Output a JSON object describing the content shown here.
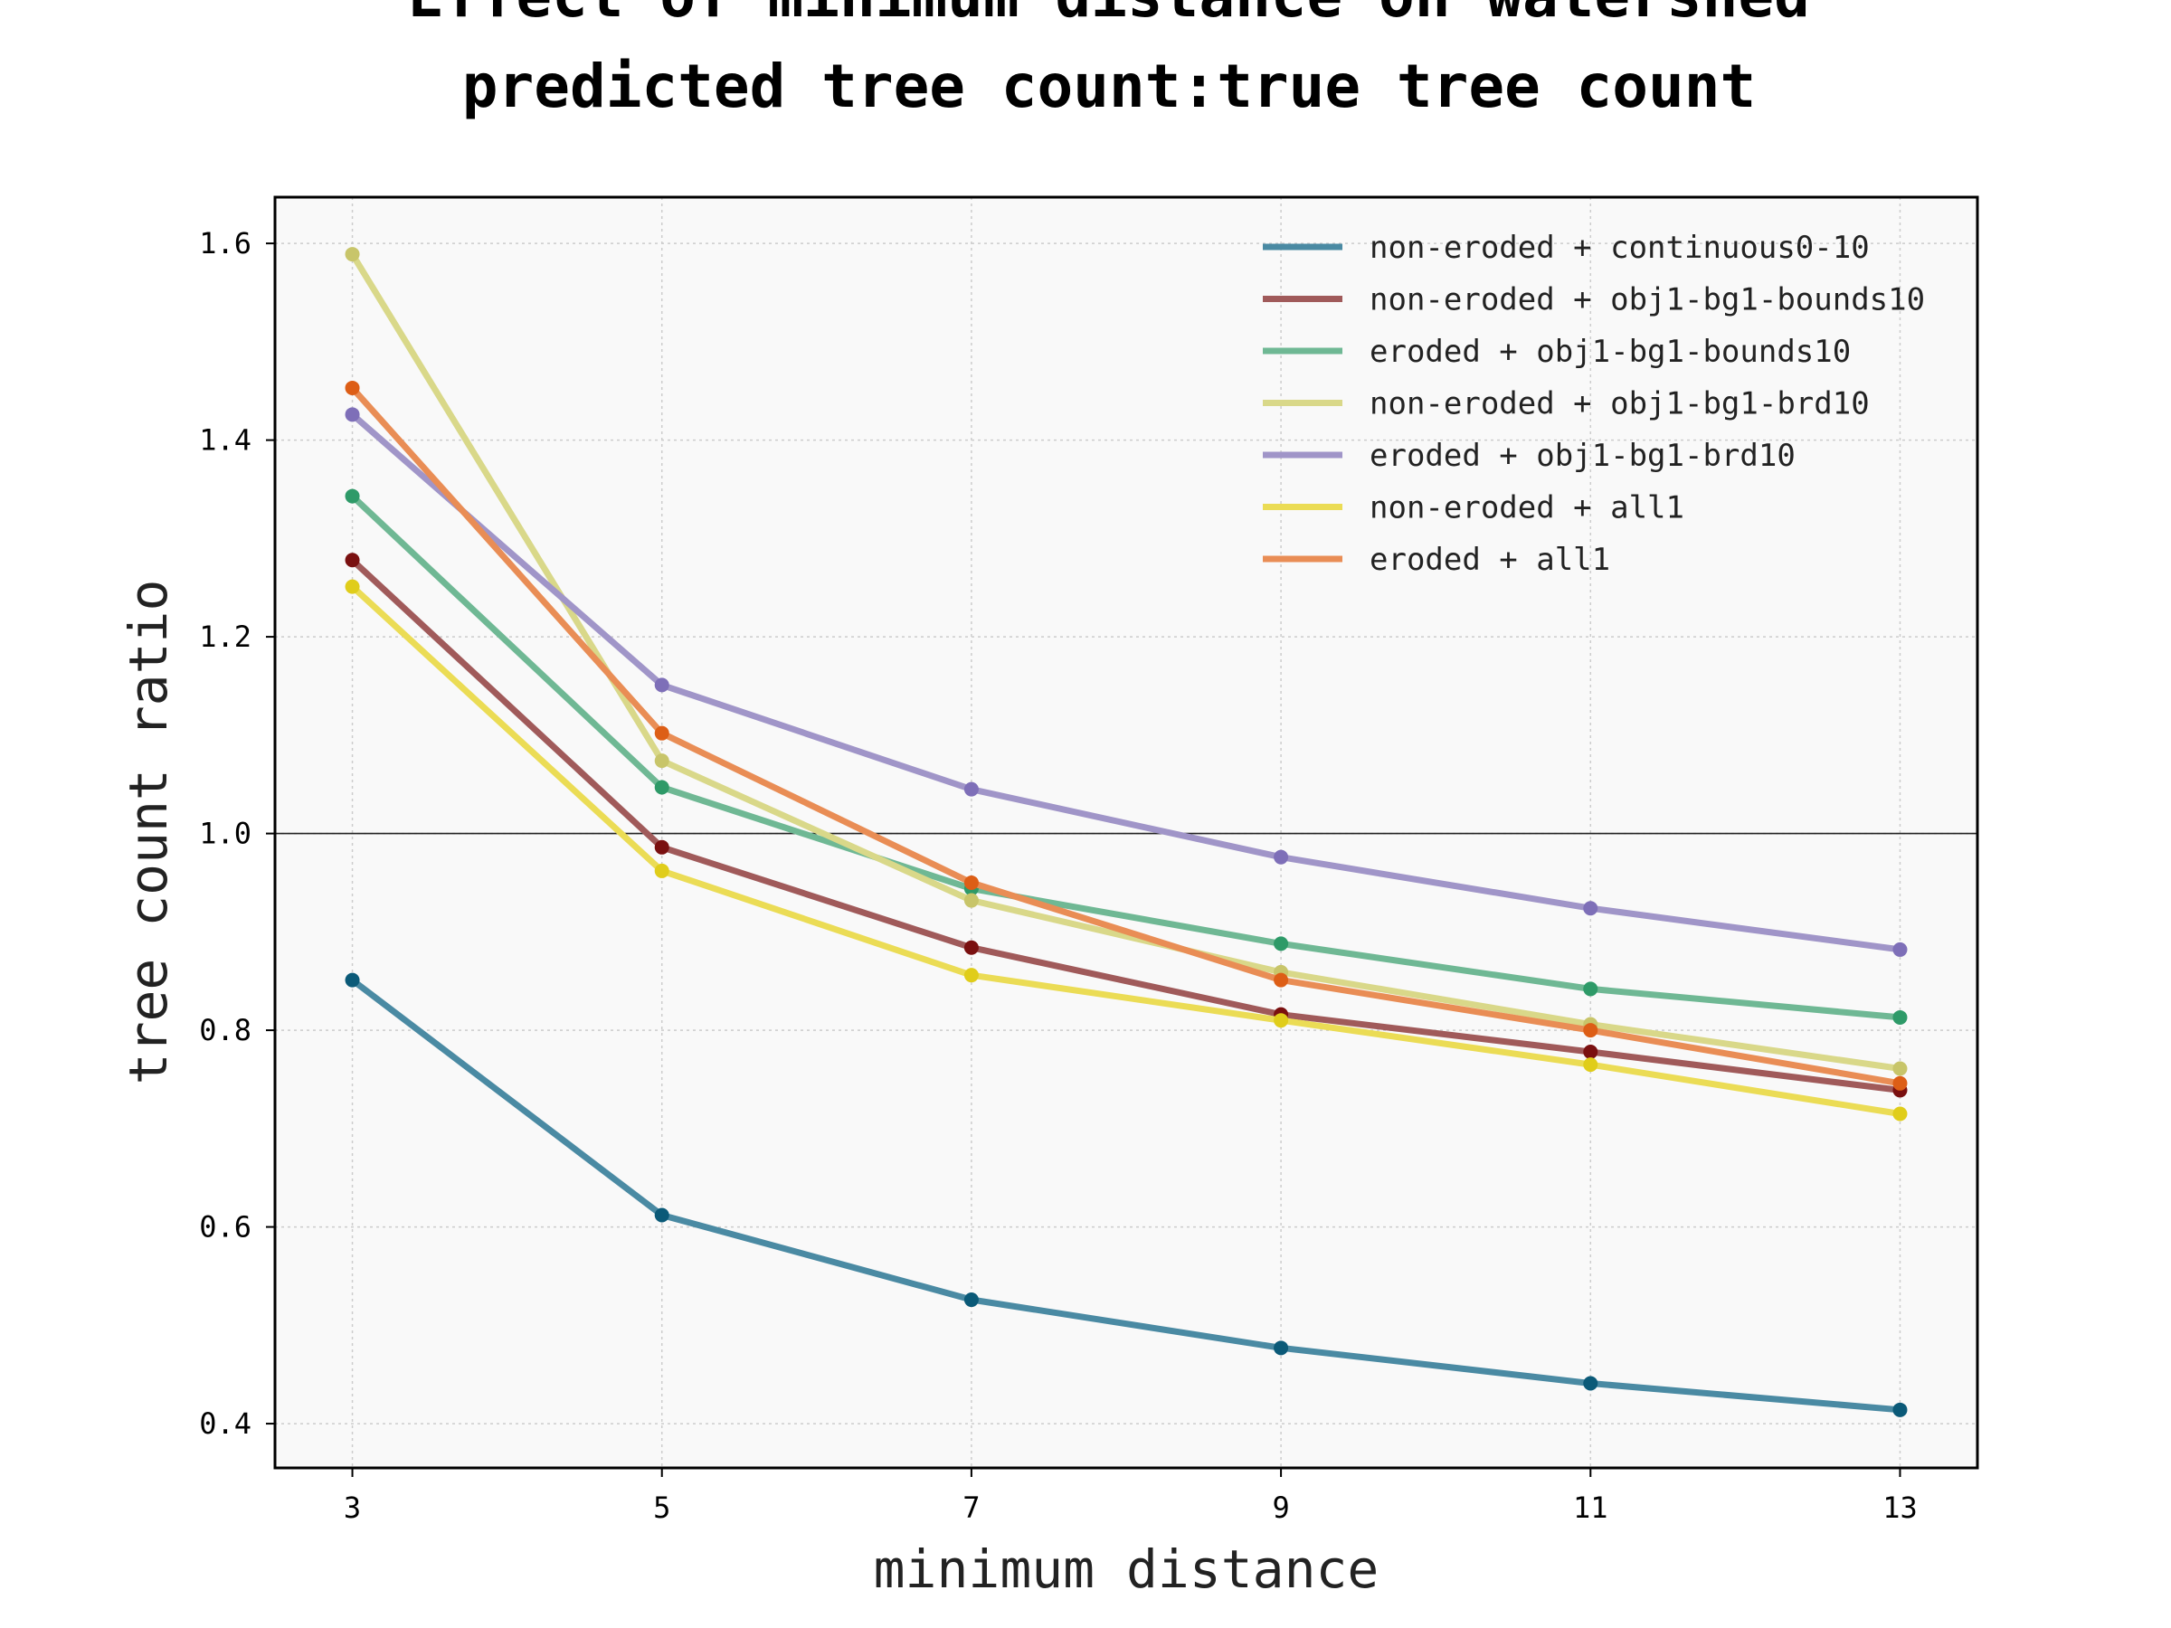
{
  "chart_data": {
    "type": "line",
    "title_lines": [
      "Effect of minimum distance on watershed",
      "predicted tree count:true tree count"
    ],
    "xlabel": "minimum distance",
    "ylabel": "tree count ratio",
    "x": [
      3,
      5,
      7,
      9,
      11,
      13
    ],
    "xticks": [
      "3",
      "5",
      "7",
      "9",
      "11",
      "13"
    ],
    "xlim": [
      2.5,
      13.5
    ],
    "yticks": [
      "0.4",
      "0.6",
      "0.8",
      "1.0",
      "1.2",
      "1.4",
      "1.6"
    ],
    "ylim": [
      0.355,
      1.647
    ],
    "reference_line": 1.0,
    "grid": true,
    "legend_position": "top-right",
    "series": [
      {
        "name": "non-eroded + continuous0-10",
        "color": "#4a8aa3",
        "marker_color": "#0b5a78",
        "values": [
          0.851,
          0.612,
          0.526,
          0.477,
          0.441,
          0.414
        ]
      },
      {
        "name": "non-eroded + obj1-bg1-bounds10",
        "color": "#a05a5a",
        "marker_color": "#7a1010",
        "values": [
          1.278,
          0.986,
          0.884,
          0.816,
          0.778,
          0.739
        ]
      },
      {
        "name": "eroded + obj1-bg1-bounds10",
        "color": "#6fb894",
        "marker_color": "#2e9a68",
        "values": [
          1.343,
          1.047,
          0.944,
          0.888,
          0.842,
          0.813
        ]
      },
      {
        "name": "non-eroded + obj1-bg1-brd10",
        "color": "#d9d889",
        "marker_color": "#c8c56a",
        "values": [
          1.589,
          1.074,
          0.932,
          0.859,
          0.806,
          0.761
        ]
      },
      {
        "name": "eroded + obj1-bg1-brd10",
        "color": "#a095c8",
        "marker_color": "#7e6fb8",
        "values": [
          1.426,
          1.151,
          1.045,
          0.976,
          0.924,
          0.882
        ]
      },
      {
        "name": "non-eroded + all1",
        "color": "#ebdc55",
        "marker_color": "#e0cd1a",
        "values": [
          1.251,
          0.962,
          0.856,
          0.81,
          0.765,
          0.715
        ]
      },
      {
        "name": "eroded + all1",
        "color": "#e98d55",
        "marker_color": "#dd5e16",
        "values": [
          1.453,
          1.102,
          0.95,
          0.851,
          0.8,
          0.746
        ]
      }
    ]
  }
}
